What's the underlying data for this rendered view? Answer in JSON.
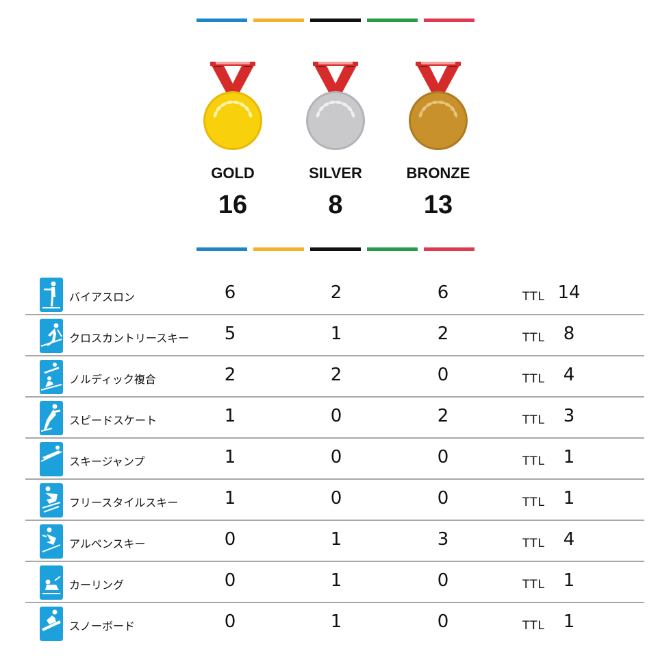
{
  "stripe_colors": [
    "#1e86c4",
    "#f2b22a",
    "#111111",
    "#2b9a48",
    "#e03a50"
  ],
  "medals": [
    {
      "label": "GOLD",
      "count": "16",
      "color": "#f8d10c",
      "rim": "#e8b90a",
      "wreath": "#fff3b0"
    },
    {
      "label": "SILVER",
      "count": "8",
      "color": "#c9c9cc",
      "rim": "#b3b3b8",
      "wreath": "#eeeeee"
    },
    {
      "label": "BRONZE",
      "count": "13",
      "color": "#c8912c",
      "rim": "#b07a20",
      "wreath": "#e8c27a"
    }
  ],
  "ribbon_color": "#d52b2b",
  "icon_color": "#1da1dc",
  "ttl_label": "TTL",
  "rows": [
    {
      "sport": "バイアスロン",
      "icon": "biathlon-icon",
      "gold": "6",
      "silver": "2",
      "bronze": "6",
      "total": "14"
    },
    {
      "sport": "クロスカントリースキー",
      "icon": "cross-country-skiing-icon",
      "gold": "5",
      "silver": "1",
      "bronze": "2",
      "total": "8"
    },
    {
      "sport": "ノルディック複合",
      "icon": "nordic-combined-icon",
      "gold": "2",
      "silver": "2",
      "bronze": "0",
      "total": "4"
    },
    {
      "sport": "スピードスケート",
      "icon": "speed-skating-icon",
      "gold": "1",
      "silver": "0",
      "bronze": "2",
      "total": "3"
    },
    {
      "sport": "スキージャンプ",
      "icon": "ski-jumping-icon",
      "gold": "1",
      "silver": "0",
      "bronze": "0",
      "total": "1"
    },
    {
      "sport": "フリースタイルスキー",
      "icon": "freestyle-skiing-icon",
      "gold": "1",
      "silver": "0",
      "bronze": "0",
      "total": "1"
    },
    {
      "sport": "アルペンスキー",
      "icon": "alpine-skiing-icon",
      "gold": "0",
      "silver": "1",
      "bronze": "3",
      "total": "4"
    },
    {
      "sport": "カーリング",
      "icon": "curling-icon",
      "gold": "0",
      "silver": "1",
      "bronze": "0",
      "total": "1"
    },
    {
      "sport": "スノーボード",
      "icon": "snowboard-icon",
      "gold": "0",
      "silver": "1",
      "bronze": "0",
      "total": "1"
    }
  ]
}
